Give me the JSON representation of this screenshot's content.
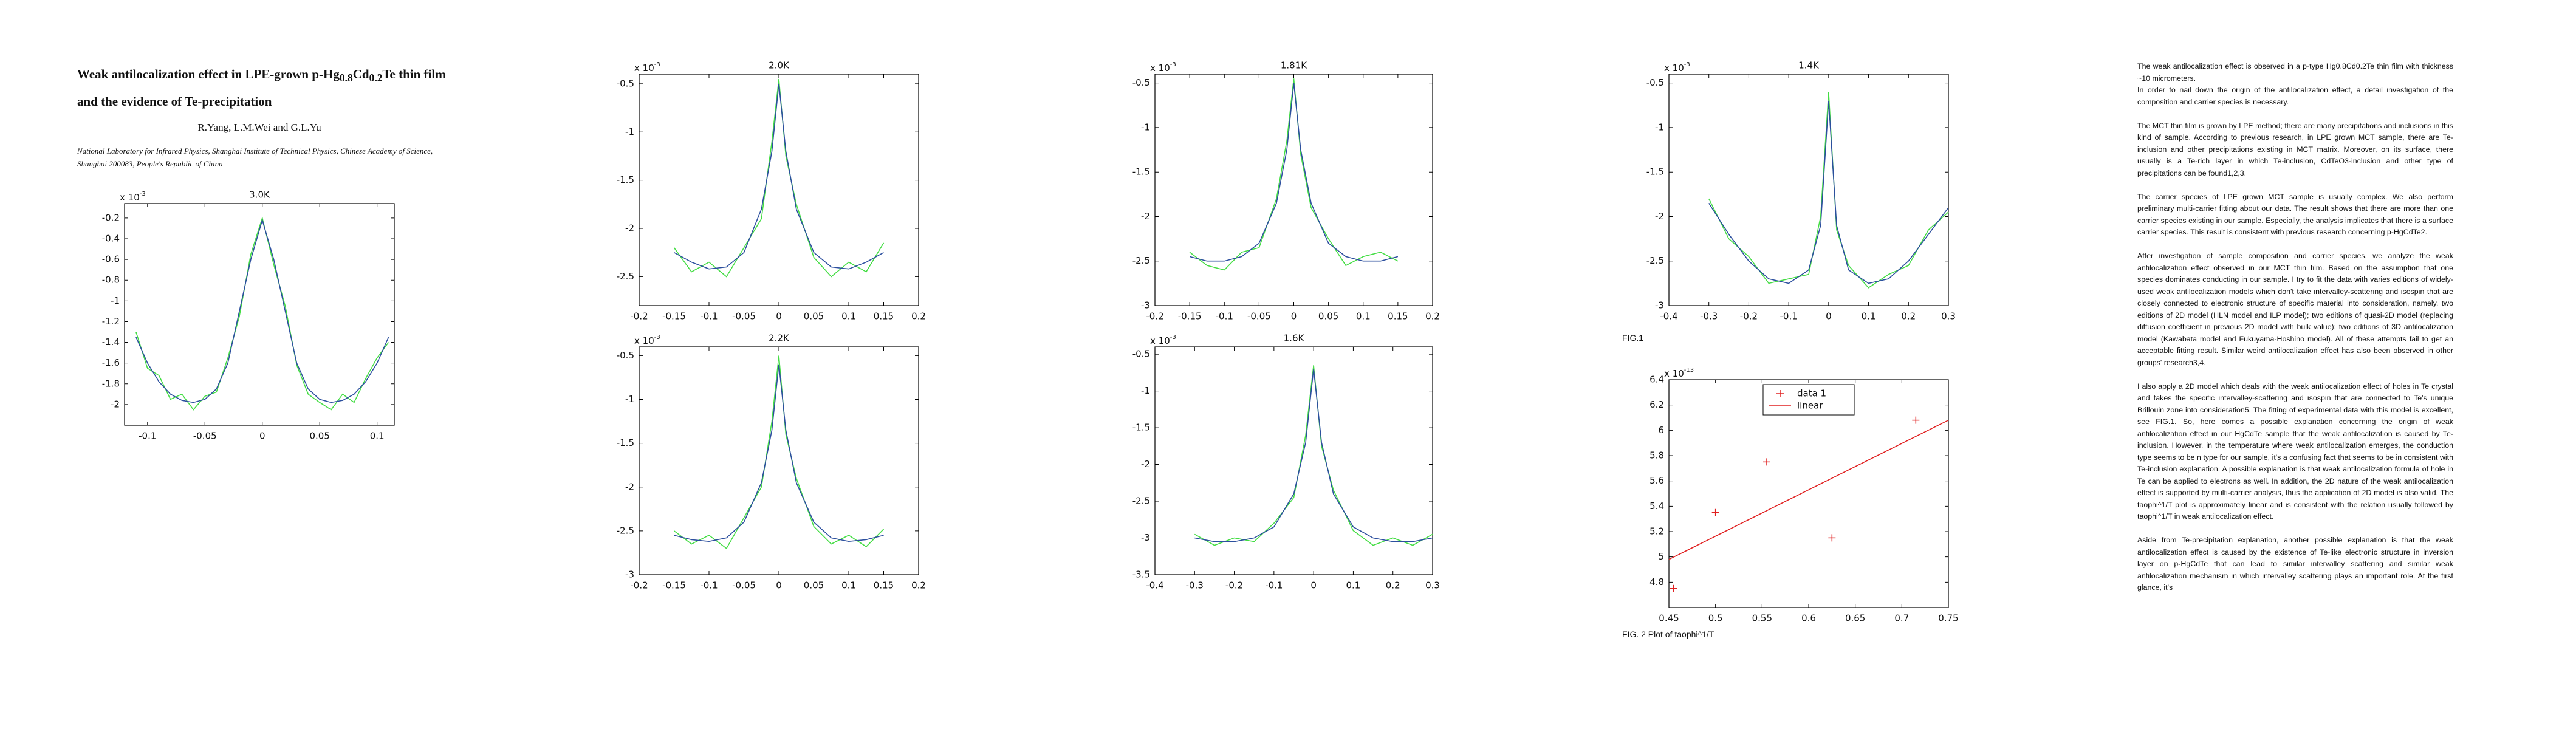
{
  "paper": {
    "title": [
      "Weak antilocalization effect in LPE-grown p-Hg",
      "0.8",
      "Cd",
      "0.2",
      "Te thin film"
    ],
    "title_line2": "and the evidence of Te-precipitation",
    "authors": "R.Yang, L.M.Wei and G.L.Yu",
    "affiliation": "National Laboratory for Infrared Physics, Shanghai Institute of Technical Physics, Chinese Academy of Science, Shanghai 200083, People's Republic of China",
    "fig1_caption": "FIG.1",
    "fig2_caption": "FIG. 2 Plot of taophi^1/T",
    "body": [
      [
        "The weak antilocalization effect is observed in a p-type Hg0.8Cd0.2Te thin film with thickness ~10 micrometers.",
        "In order to nail down the origin of the antilocalization effect, a detail investigation of the composition and carrier species is necessary."
      ],
      [
        "The MCT thin film is grown by LPE method; there are many precipitations and inclusions in this kind of sample. According to previous research, in LPE grown MCT sample, there are Te-inclusion and other precipitations existing in MCT matrix. Moreover, on its surface, there usually is a Te-rich layer in which Te-inclusion, CdTeO3-inclusion and other type of precipitations can be found1,2,3."
      ],
      [
        "The carrier species of LPE grown MCT sample is usually complex. We also perform preliminary multi-carrier fitting about our data. The result shows that there are more than one carrier species existing in our sample. Especially, the analysis implicates that there is a surface carrier species. This result is consistent with previous research concerning p-HgCdTe2."
      ],
      [
        "After investigation of sample composition and carrier species, we analyze the weak antilocalization effect observed in our MCT thin film. Based on the assumption that one species dominates conducting in our sample. I try to fit the data with varies editions of widely-used weak antilocalization models which don't take intervalley-scattering and isospin that are closely connected to electronic structure of specific material into consideration, namely, two editions of 2D model (HLN model and ILP model); two editions of quasi-2D model (replacing diffusion coefficient in previous 2D model with bulk value); two editions of 3D antilocalization model (Kawabata model and Fukuyama-Hoshino model). All of these attempts fail to get an acceptable fitting result. Similar weird antilocalization effect has also been observed in other groups' research3,4."
      ],
      [
        "I also apply a 2D model which deals with the weak antilocalization effect of holes in Te crystal and takes the specific intervalley-scattering and isospin that are connected to Te's unique Brillouin zone into consideration5. The fitting of experimental data with this model is excellent, see FIG.1. So, here comes a possible explanation concerning the origin of weak antilocalization effect in our HgCdTe sample that the weak antilocalization is caused by Te-inclusion. However, in the temperature where weak antilocalization emerges, the conduction type seems to be n type for our sample, it's a confusing fact that seems to be in consistent with Te-inclusion explanation. A possible explanation is that weak antilocalization formula of hole in Te can be applied to electrons as well. In addition, the 2D nature of the weak antilocalization effect is supported by multi-carrier analysis, thus the application of 2D model is also valid. The taophi^1/T plot is approximately linear and is consistent with the relation usually followed by taophi^1/T in weak antilocalization effect."
      ],
      [
        "Aside from Te-precipitation explanation, another possible explanation is that the weak antilocalization effect is caused by the existence of Te-like electronic structure in inversion layer on p-HgCdTe that can lead to similar intervalley scattering and similar weak antilocalization mechanism in which intervalley scattering plays an important role. At the first glance, it's"
      ]
    ]
  },
  "chart_data": [
    {
      "type": "line",
      "title": "3.0K",
      "y_scale_label": "x 10",
      "y_scale_exponent": "-3",
      "xlim": [
        -0.12,
        0.115
      ],
      "xticks": [
        -0.1,
        -0.05,
        0,
        0.05,
        0.1
      ],
      "ylim": [
        -2.2,
        -0.06
      ],
      "yticks": [
        -0.2,
        -0.4,
        -0.6,
        -0.8,
        -1,
        -1.2,
        -1.4,
        -1.6,
        -1.8,
        -2
      ],
      "x": [
        -0.11,
        -0.1,
        -0.09,
        -0.08,
        -0.07,
        -0.06,
        -0.05,
        -0.04,
        -0.03,
        -0.02,
        -0.01,
        0,
        0.01,
        0.02,
        0.03,
        0.04,
        0.05,
        0.06,
        0.07,
        0.08,
        0.09,
        0.1,
        0.11
      ],
      "series": [
        {
          "color": "#44dd44",
          "values": [
            -1.3,
            -1.65,
            -1.72,
            -1.95,
            -1.9,
            -2.05,
            -1.92,
            -1.88,
            -1.55,
            -1.15,
            -0.55,
            -0.2,
            -0.65,
            -1.05,
            -1.62,
            -1.9,
            -1.98,
            -2.05,
            -1.9,
            -1.98,
            -1.75,
            -1.55,
            -1.4
          ]
        },
        {
          "color": "#2c4f9e",
          "values": [
            -1.35,
            -1.6,
            -1.78,
            -1.9,
            -1.96,
            -1.98,
            -1.95,
            -1.85,
            -1.6,
            -1.1,
            -0.6,
            -0.22,
            -0.6,
            -1.1,
            -1.6,
            -1.85,
            -1.95,
            -1.98,
            -1.96,
            -1.9,
            -1.78,
            -1.6,
            -1.35
          ]
        }
      ]
    },
    {
      "type": "line",
      "title": "2.0K",
      "y_scale_label": "x 10",
      "y_scale_exponent": "-3",
      "xlim": [
        -0.2,
        0.2
      ],
      "xticks": [
        -0.2,
        -0.15,
        -0.1,
        -0.05,
        0,
        0.05,
        0.1,
        0.15,
        0.2
      ],
      "ylim": [
        -2.8,
        -0.4
      ],
      "yticks": [
        -0.5,
        -1,
        -1.5,
        -2,
        -2.5
      ],
      "x": [
        -0.15,
        -0.125,
        -0.1,
        -0.075,
        -0.05,
        -0.025,
        -0.01,
        0,
        0.01,
        0.025,
        0.05,
        0.075,
        0.1,
        0.125,
        0.15
      ],
      "series": [
        {
          "color": "#44dd44",
          "values": [
            -2.2,
            -2.45,
            -2.35,
            -2.5,
            -2.2,
            -1.9,
            -1.1,
            -0.45,
            -1.25,
            -1.75,
            -2.3,
            -2.5,
            -2.35,
            -2.45,
            -2.15
          ]
        },
        {
          "color": "#2c4f9e",
          "values": [
            -2.25,
            -2.35,
            -2.42,
            -2.4,
            -2.25,
            -1.8,
            -1.2,
            -0.5,
            -1.2,
            -1.8,
            -2.25,
            -2.4,
            -2.42,
            -2.35,
            -2.25
          ]
        }
      ]
    },
    {
      "type": "line",
      "title": "2.2K",
      "y_scale_label": "x 10",
      "y_scale_exponent": "-3",
      "xlim": [
        -0.2,
        0.2
      ],
      "xticks": [
        -0.2,
        -0.15,
        -0.1,
        -0.05,
        0,
        0.05,
        0.1,
        0.15,
        0.2
      ],
      "ylim": [
        -3,
        -0.4
      ],
      "yticks": [
        -0.5,
        -1,
        -1.5,
        -2,
        -2.5,
        -3
      ],
      "x": [
        -0.15,
        -0.125,
        -0.1,
        -0.075,
        -0.05,
        -0.025,
        -0.01,
        0,
        0.01,
        0.025,
        0.05,
        0.075,
        0.1,
        0.125,
        0.15
      ],
      "series": [
        {
          "color": "#44dd44",
          "values": [
            -2.5,
            -2.65,
            -2.55,
            -2.7,
            -2.35,
            -2.0,
            -1.25,
            -0.5,
            -1.4,
            -1.9,
            -2.45,
            -2.65,
            -2.55,
            -2.68,
            -2.48
          ]
        },
        {
          "color": "#2c4f9e",
          "values": [
            -2.55,
            -2.6,
            -2.62,
            -2.58,
            -2.4,
            -1.95,
            -1.35,
            -0.6,
            -1.35,
            -1.95,
            -2.4,
            -2.58,
            -2.62,
            -2.6,
            -2.55
          ]
        }
      ]
    },
    {
      "type": "line",
      "title": "1.81K",
      "y_scale_label": "x 10",
      "y_scale_exponent": "-3",
      "xlim": [
        -0.2,
        0.2
      ],
      "xticks": [
        -0.2,
        -0.15,
        -0.1,
        -0.05,
        0,
        0.05,
        0.1,
        0.15,
        0.2
      ],
      "ylim": [
        -3,
        -0.4
      ],
      "yticks": [
        -0.5,
        -1,
        -1.5,
        -2,
        -2.5,
        -3
      ],
      "x": [
        -0.15,
        -0.125,
        -0.1,
        -0.075,
        -0.05,
        -0.025,
        -0.01,
        0,
        0.01,
        0.025,
        0.05,
        0.075,
        0.1,
        0.125,
        0.15
      ],
      "series": [
        {
          "color": "#44dd44",
          "values": [
            -2.4,
            -2.55,
            -2.6,
            -2.4,
            -2.35,
            -1.8,
            -1.15,
            -0.45,
            -1.3,
            -1.9,
            -2.25,
            -2.55,
            -2.45,
            -2.4,
            -2.5
          ]
        },
        {
          "color": "#2c4f9e",
          "values": [
            -2.45,
            -2.5,
            -2.5,
            -2.45,
            -2.3,
            -1.85,
            -1.25,
            -0.5,
            -1.25,
            -1.85,
            -2.3,
            -2.45,
            -2.5,
            -2.5,
            -2.45
          ]
        }
      ]
    },
    {
      "type": "line",
      "title": "1.6K",
      "y_scale_label": "x 10",
      "y_scale_exponent": "-3",
      "xlim": [
        -0.4,
        0.3
      ],
      "xticks": [
        -0.4,
        -0.3,
        -0.2,
        -0.1,
        0,
        0.1,
        0.2,
        0.3
      ],
      "ylim": [
        -3.5,
        -0.4
      ],
      "yticks": [
        -0.5,
        -1,
        -1.5,
        -2,
        -2.5,
        -3,
        -3.5
      ],
      "x": [
        -0.3,
        -0.25,
        -0.2,
        -0.15,
        -0.1,
        -0.05,
        -0.02,
        0,
        0.02,
        0.05,
        0.1,
        0.15,
        0.2,
        0.25,
        0.3
      ],
      "series": [
        {
          "color": "#44dd44",
          "values": [
            -2.95,
            -3.1,
            -3.0,
            -3.05,
            -2.8,
            -2.45,
            -1.6,
            -0.65,
            -1.75,
            -2.35,
            -2.9,
            -3.1,
            -3.0,
            -3.1,
            -2.95
          ]
        },
        {
          "color": "#2c4f9e",
          "values": [
            -3.0,
            -3.05,
            -3.05,
            -3.0,
            -2.85,
            -2.4,
            -1.7,
            -0.7,
            -1.7,
            -2.4,
            -2.85,
            -3.0,
            -3.05,
            -3.05,
            -3.0
          ]
        }
      ]
    },
    {
      "type": "line",
      "title": "1.4K",
      "y_scale_label": "x 10",
      "y_scale_exponent": "-3",
      "xlim": [
        -0.4,
        0.3
      ],
      "xticks": [
        -0.4,
        -0.3,
        -0.2,
        -0.1,
        0,
        0.1,
        0.2,
        0.3
      ],
      "ylim": [
        -3,
        -0.4
      ],
      "yticks": [
        -0.5,
        -1,
        -1.5,
        -2,
        -2.5,
        -3
      ],
      "x": [
        -0.3,
        -0.25,
        -0.2,
        -0.15,
        -0.1,
        -0.05,
        -0.02,
        0,
        0.02,
        0.05,
        0.1,
        0.15,
        0.2,
        0.25,
        0.3
      ],
      "series": [
        {
          "color": "#44dd44",
          "values": [
            -1.8,
            -2.25,
            -2.45,
            -2.75,
            -2.7,
            -2.65,
            -2.0,
            -0.6,
            -2.15,
            -2.55,
            -2.8,
            -2.65,
            -2.55,
            -2.15,
            -1.95
          ]
        },
        {
          "color": "#2c4f9e",
          "values": [
            -1.85,
            -2.2,
            -2.5,
            -2.7,
            -2.75,
            -2.6,
            -2.1,
            -0.7,
            -2.1,
            -2.6,
            -2.75,
            -2.7,
            -2.5,
            -2.2,
            -1.9
          ]
        }
      ]
    },
    {
      "type": "scatter",
      "y_scale_label": "x 10",
      "y_scale_exponent": "-13",
      "xlim": [
        0.45,
        0.75
      ],
      "xticks": [
        0.45,
        0.5,
        0.55,
        0.6,
        0.65,
        0.7,
        0.75
      ],
      "ylim": [
        4.6,
        6.4
      ],
      "yticks": [
        4.8,
        5,
        5.2,
        5.4,
        5.6,
        5.8,
        6,
        6.2,
        6.4
      ],
      "legend": "upper center",
      "series": [
        {
          "name": "data 1",
          "color": "#e02020",
          "marker": "+",
          "x": [
            0.455,
            0.5,
            0.555,
            0.625,
            0.715
          ],
          "values": [
            4.75,
            5.35,
            5.75,
            5.15,
            6.08
          ]
        },
        {
          "name": "linear",
          "color": "#e02020",
          "linestyle": "-",
          "x": [
            0.45,
            0.75
          ],
          "values": [
            4.98,
            6.08
          ]
        }
      ]
    }
  ]
}
